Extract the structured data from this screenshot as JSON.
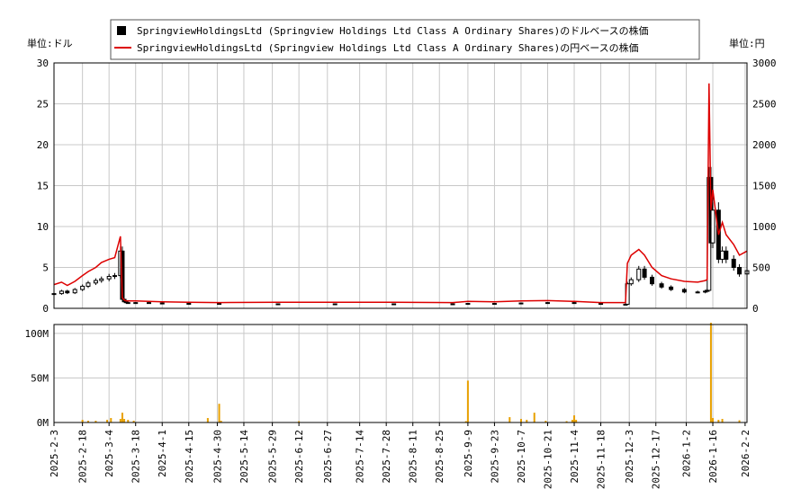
{
  "chart_data": [
    {
      "type": "line",
      "legend": [
        {
          "label": "SpringviewHoldingsLtd (Springview Holdings Ltd Class A Ordinary Shares)のドルベースの株価",
          "color": "#000000",
          "marker": "candlestick"
        },
        {
          "label": "SpringviewHoldingsLtd (Springview Holdings Ltd Class A Ordinary Shares)の円ベースの株価",
          "color": "#dd0000",
          "marker": "line"
        }
      ],
      "legend_placement": "top-center",
      "y_left_unit": "単位:ドル",
      "y_right_unit": "単位:円",
      "ylim_left": [
        0,
        30
      ],
      "ylim_right": [
        0,
        3000
      ],
      "yticks_left": [
        "0",
        "5",
        "10",
        "15",
        "20",
        "25",
        "30"
      ],
      "yticks_right": [
        "0",
        "500",
        "1000",
        "1500",
        "2000",
        "2500",
        "3000"
      ],
      "grid": true,
      "x_dates": [
        "2025-2-3",
        "2025-2-7",
        "2025-2-10",
        "2025-2-14",
        "2025-2-18",
        "2025-2-21",
        "2025-2-25",
        "2025-2-28",
        "2025-3-4",
        "2025-3-7",
        "2025-3-10",
        "2025-3-11",
        "2025-3-12",
        "2025-3-13",
        "2025-3-14",
        "2025-3-18",
        "2025-3-25",
        "2025-4-1",
        "2025-4-15",
        "2025-5-1",
        "2025-6-1",
        "2025-7-1",
        "2025-8-1",
        "2025-9-1",
        "2025-9-9",
        "2025-9-23",
        "2025-10-7",
        "2025-10-21",
        "2025-11-4",
        "2025-11-18",
        "2025-12-1",
        "2025-12-2",
        "2025-12-4",
        "2025-12-8",
        "2025-12-11",
        "2025-12-15",
        "2025-12-20",
        "2025-12-25",
        "2026-1-1",
        "2026-1-8",
        "2026-1-12",
        "2026-1-13",
        "2026-1-14",
        "2026-1-15",
        "2026-1-16",
        "2026-1-19",
        "2026-1-21",
        "2026-1-23",
        "2026-1-27",
        "2026-1-30",
        "2026-2-3"
      ],
      "usd_close": [
        1.8,
        2.1,
        1.9,
        2.3,
        2.7,
        3.1,
        3.4,
        3.6,
        3.9,
        4.0,
        7.0,
        1.1,
        0.8,
        0.7,
        0.7,
        0.7,
        0.65,
        0.6,
        0.6,
        0.5,
        0.55,
        0.5,
        0.55,
        0.5,
        0.6,
        0.55,
        0.65,
        0.7,
        0.6,
        0.5,
        0.5,
        3.0,
        3.5,
        4.8,
        3.8,
        3.0,
        2.6,
        2.3,
        2.0,
        2.0,
        2.1,
        2.2,
        16.0,
        8.0,
        12.0,
        6.0,
        7.0,
        6.0,
        5.0,
        4.2,
        4.6
      ],
      "jpy_close": [
        290,
        320,
        280,
        330,
        400,
        450,
        500,
        560,
        600,
        620,
        880,
        130,
        100,
        90,
        90,
        90,
        85,
        80,
        75,
        70,
        75,
        75,
        75,
        70,
        85,
        80,
        90,
        95,
        85,
        70,
        70,
        550,
        650,
        720,
        650,
        500,
        400,
        360,
        330,
        320,
        340,
        350,
        2750,
        1200,
        1450,
        900,
        1050,
        900,
        780,
        650,
        700
      ]
    },
    {
      "type": "bar",
      "ylim": [
        0,
        110000000
      ],
      "yticks": [
        "0M",
        "50M",
        "100M"
      ],
      "bar_color": "#e8a000",
      "x_ticks": [
        "2025-2-3",
        "2025-2-18",
        "2025-3-4",
        "2025-3-18",
        "2025-4-1",
        "2025-4-15",
        "2025-4-30",
        "2025-5-14",
        "2025-5-29",
        "2025-6-12",
        "2025-6-27",
        "2025-7-14",
        "2025-7-28",
        "2025-8-11",
        "2025-8-25",
        "2025-9-9",
        "2025-9-23",
        "2025-10-7",
        "2025-10-21",
        "2025-11-4",
        "2025-11-18",
        "2025-12-3",
        "2025-12-17",
        "2026-1-2",
        "2026-1-16",
        "2026-2-2"
      ],
      "volumes": [
        {
          "date": "2025-2-18",
          "v": 3000000
        },
        {
          "date": "2025-2-21",
          "v": 2000000
        },
        {
          "date": "2025-2-25",
          "v": 2000000
        },
        {
          "date": "2025-3-3",
          "v": 3000000
        },
        {
          "date": "2025-3-5",
          "v": 5000000
        },
        {
          "date": "2025-3-10",
          "v": 4000000
        },
        {
          "date": "2025-3-11",
          "v": 11000000
        },
        {
          "date": "2025-3-12",
          "v": 4000000
        },
        {
          "date": "2025-3-14",
          "v": 3000000
        },
        {
          "date": "2025-3-17",
          "v": 2000000
        },
        {
          "date": "2025-4-25",
          "v": 5000000
        },
        {
          "date": "2025-5-1",
          "v": 21000000
        },
        {
          "date": "2025-5-2",
          "v": 2000000
        },
        {
          "date": "2025-6-12",
          "v": 1500000
        },
        {
          "date": "2025-9-8",
          "v": 1500000
        },
        {
          "date": "2025-9-9",
          "v": 47000000
        },
        {
          "date": "2025-10-1",
          "v": 6000000
        },
        {
          "date": "2025-10-7",
          "v": 4000000
        },
        {
          "date": "2025-10-10",
          "v": 3000000
        },
        {
          "date": "2025-10-14",
          "v": 11000000
        },
        {
          "date": "2025-10-20",
          "v": 2000000
        },
        {
          "date": "2025-10-31",
          "v": 1500000
        },
        {
          "date": "2025-11-3",
          "v": 3000000
        },
        {
          "date": "2025-11-4",
          "v": 8000000
        },
        {
          "date": "2025-11-5",
          "v": 3000000
        },
        {
          "date": "2026-1-15",
          "v": 112000000
        },
        {
          "date": "2026-1-16",
          "v": 5000000
        },
        {
          "date": "2026-1-19",
          "v": 3000000
        },
        {
          "date": "2026-1-21",
          "v": 4000000
        },
        {
          "date": "2026-1-30",
          "v": 2500000
        }
      ]
    }
  ]
}
